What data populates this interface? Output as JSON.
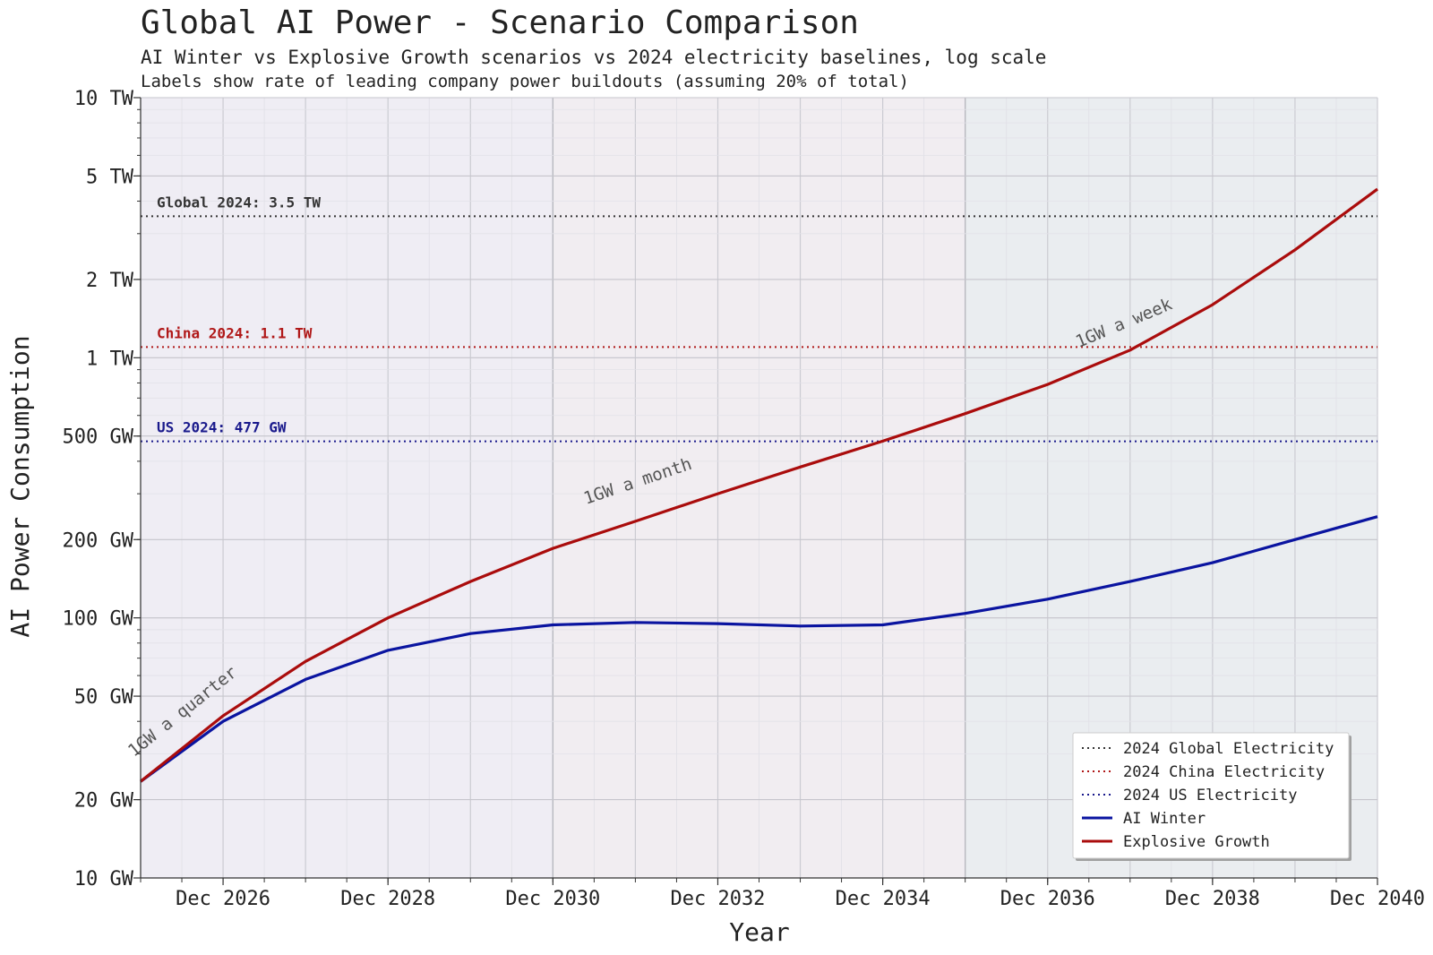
{
  "chart_data": {
    "type": "line",
    "title": "Global AI Power - Scenario Comparison",
    "subtitle": "AI Winter vs Explosive Growth scenarios vs 2024 electricity baselines, log scale",
    "subtitle2": "Labels show rate of leading company power buildouts (assuming 20% of total)",
    "xlabel": "Year",
    "ylabel": "AI Power Consumption",
    "yscale": "log",
    "xlim": [
      2025.95,
      2040.95
    ],
    "ylim_gw": [
      10,
      10000
    ],
    "x_ticks": [
      {
        "x": 2026.95,
        "label": "Dec 2026"
      },
      {
        "x": 2028.95,
        "label": "Dec 2028"
      },
      {
        "x": 2030.95,
        "label": "Dec 2030"
      },
      {
        "x": 2032.95,
        "label": "Dec 2032"
      },
      {
        "x": 2034.95,
        "label": "Dec 2034"
      },
      {
        "x": 2036.95,
        "label": "Dec 2036"
      },
      {
        "x": 2038.95,
        "label": "Dec 2038"
      },
      {
        "x": 2040.95,
        "label": "Dec 2040"
      }
    ],
    "y_ticks": [
      {
        "value": 10,
        "label": "10 GW"
      },
      {
        "value": 20,
        "label": "20 GW"
      },
      {
        "value": 50,
        "label": "50 GW"
      },
      {
        "value": 100,
        "label": "100 GW"
      },
      {
        "value": 200,
        "label": "200 GW"
      },
      {
        "value": 500,
        "label": "500 GW"
      },
      {
        "value": 1000,
        "label": "1 TW"
      },
      {
        "value": 2000,
        "label": "2 TW"
      },
      {
        "value": 5000,
        "label": "5 TW"
      },
      {
        "value": 10000,
        "label": "10 TW"
      }
    ],
    "x": [
      2025.95,
      2026.95,
      2027.95,
      2028.95,
      2029.95,
      2030.95,
      2031.95,
      2032.95,
      2033.95,
      2034.95,
      2035.95,
      2036.95,
      2037.95,
      2038.95,
      2039.95,
      2040.95
    ],
    "series": [
      {
        "name": "AI Winter",
        "color": "#0a14a0",
        "values": [
          23.5,
          40,
          58,
          75,
          87,
          94,
          96,
          95,
          93,
          94,
          104,
          118,
          138,
          163,
          200,
          245
        ]
      },
      {
        "name": "Explosive Growth",
        "color": "#aa0c0c",
        "values": [
          23.5,
          42,
          68,
          100,
          138,
          185,
          235,
          300,
          380,
          478,
          610,
          790,
          1070,
          1600,
          2600,
          4450
        ]
      }
    ],
    "reference_lines": [
      {
        "name": "2024 Global Electricity",
        "value": 3500,
        "label": "Global 2024: 3.5 TW",
        "color": "#333333"
      },
      {
        "name": "2024 China Electricity",
        "value": 1100,
        "label": "China 2024: 1.1 TW",
        "color": "#b01818"
      },
      {
        "name": "2024 US Electricity",
        "value": 477,
        "label": "US 2024: 477 GW",
        "color": "#1a1a8c"
      }
    ],
    "annotations": [
      {
        "text": "1GW a quarter",
        "x": 2026.5,
        "value": 42
      },
      {
        "text": "1GW a month",
        "x": 2032.0,
        "value": 320
      },
      {
        "text": "1GW a week",
        "x": 2037.9,
        "value": 1300
      }
    ],
    "background_regions": [
      {
        "from": 2025.95,
        "to": 2030.95,
        "color": "#efedf4"
      },
      {
        "from": 2030.95,
        "to": 2035.95,
        "color": "#f1edf1"
      },
      {
        "from": 2035.95,
        "to": 2040.95,
        "color": "#eaedf0"
      }
    ],
    "legend": {
      "position": "bottom-right",
      "entries": [
        {
          "label": "2024 Global Electricity",
          "style": "dotted",
          "color": "#333333"
        },
        {
          "label": "2024 China Electricity",
          "style": "dotted",
          "color": "#b01818"
        },
        {
          "label": "2024 US Electricity",
          "style": "dotted",
          "color": "#1a1a8c"
        },
        {
          "label": "AI Winter",
          "style": "solid",
          "color": "#0a14a0"
        },
        {
          "label": "Explosive Growth",
          "style": "solid",
          "color": "#aa0c0c"
        }
      ]
    }
  }
}
